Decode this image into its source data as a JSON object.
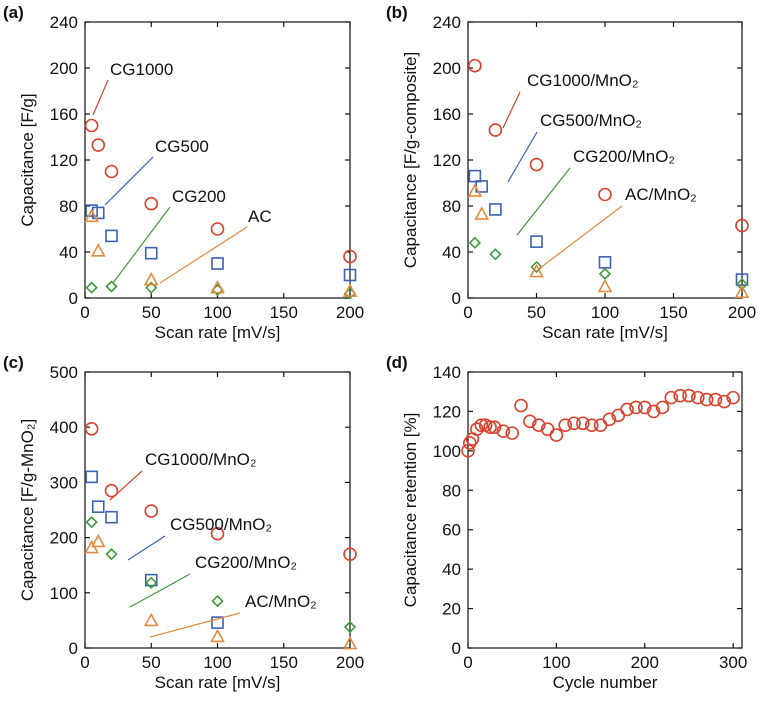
{
  "chart_data": [
    {
      "type": "scatter",
      "label": "(a)",
      "x_label": "Scan rate [mV/s]",
      "y_label": "Capacitance [F/g]",
      "x": [
        5,
        10,
        20,
        50,
        100,
        200
      ],
      "xlim": [
        0,
        200
      ],
      "xticks": [
        0,
        50,
        100,
        150,
        200
      ],
      "ylim": [
        0,
        240
      ],
      "yticks": [
        0,
        40,
        80,
        120,
        160,
        200,
        240
      ],
      "series": [
        {
          "name": "CG1000",
          "color": "#d9432e",
          "marker": "circle",
          "values": [
            150,
            133,
            110,
            82,
            60,
            36
          ]
        },
        {
          "name": "CG500",
          "color": "#3b62b3",
          "marker": "square",
          "values": [
            76,
            74,
            54,
            39,
            30,
            20
          ]
        },
        {
          "name": "CG200",
          "color": "#3f9a3b",
          "marker": "diamond",
          "values": [
            9,
            null,
            10,
            9,
            7,
            4
          ]
        },
        {
          "name": "AC",
          "color": "#e58a3c",
          "marker": "triangle",
          "values": [
            71,
            41,
            null,
            16,
            9,
            6
          ]
        }
      ]
    },
    {
      "type": "scatter",
      "label": "(b)",
      "x_label": "Scan rate [mV/s]",
      "y_label": "Capacitance [F/g-composite]",
      "x": [
        5,
        10,
        20,
        50,
        100,
        200
      ],
      "xlim": [
        0,
        200
      ],
      "xticks": [
        0,
        50,
        100,
        150,
        200
      ],
      "ylim": [
        0,
        240
      ],
      "yticks": [
        0,
        40,
        80,
        120,
        160,
        200,
        240
      ],
      "series": [
        {
          "name": "CG1000/MnO₂",
          "color": "#d9432e",
          "marker": "circle",
          "values": [
            202,
            null,
            146,
            116,
            90,
            63
          ]
        },
        {
          "name": "CG500/MnO₂",
          "color": "#3b62b3",
          "marker": "square",
          "values": [
            106,
            97,
            77,
            49,
            31,
            16
          ]
        },
        {
          "name": "CG200/MnO₂",
          "color": "#3f9a3b",
          "marker": "diamond",
          "values": [
            48,
            null,
            38,
            27,
            21,
            12
          ]
        },
        {
          "name": "AC/MnO₂",
          "color": "#e58a3c",
          "marker": "triangle",
          "values": [
            93,
            73,
            null,
            23,
            10,
            5
          ]
        }
      ]
    },
    {
      "type": "scatter",
      "label": "(c)",
      "x_label": "Scan rate [mV/s]",
      "y_label": "Capacitance [F/g-MnO₂]",
      "x": [
        5,
        10,
        20,
        50,
        100,
        200
      ],
      "xlim": [
        0,
        200
      ],
      "xticks": [
        0,
        50,
        100,
        150,
        200
      ],
      "ylim": [
        0,
        500
      ],
      "yticks": [
        0,
        100,
        200,
        300,
        400,
        500
      ],
      "series": [
        {
          "name": "CG1000/MnO₂",
          "color": "#d9432e",
          "marker": "circle",
          "values": [
            397,
            null,
            285,
            248,
            207,
            170
          ]
        },
        {
          "name": "CG500/MnO₂",
          "color": "#3b62b3",
          "marker": "square",
          "values": [
            310,
            256,
            237,
            123,
            46,
            null
          ]
        },
        {
          "name": "CG200/MnO₂",
          "color": "#3f9a3b",
          "marker": "diamond",
          "values": [
            228,
            null,
            170,
            118,
            85,
            38
          ]
        },
        {
          "name": "AC/MnO₂",
          "color": "#e58a3c",
          "marker": "triangle",
          "values": [
            182,
            193,
            null,
            50,
            21,
            8
          ]
        }
      ]
    },
    {
      "type": "scatter",
      "label": "(d)",
      "x_label": "Cycle number",
      "y_label": "Capacitance retention [%]",
      "x": [
        0,
        2,
        5,
        10,
        15,
        20,
        25,
        30,
        40,
        50,
        60,
        70,
        80,
        90,
        100,
        110,
        120,
        130,
        140,
        150,
        160,
        170,
        180,
        190,
        200,
        210,
        220,
        230,
        240,
        250,
        260,
        270,
        280,
        290,
        300
      ],
      "xlim": [
        0,
        310
      ],
      "xticks": [
        0,
        100,
        200,
        300
      ],
      "ylim": [
        0,
        140
      ],
      "yticks": [
        0,
        20,
        40,
        60,
        80,
        100,
        120,
        140
      ],
      "series": [
        {
          "color": "#d9432e",
          "marker": "circle",
          "values": [
            100,
            104,
            106,
            111,
            113,
            113,
            112,
            112,
            110,
            109,
            123,
            115,
            113,
            111,
            108,
            113,
            114,
            114,
            113,
            113,
            116,
            118,
            121,
            122,
            122,
            120,
            122,
            127,
            128,
            128,
            127,
            126,
            126,
            125,
            127
          ]
        }
      ]
    }
  ]
}
